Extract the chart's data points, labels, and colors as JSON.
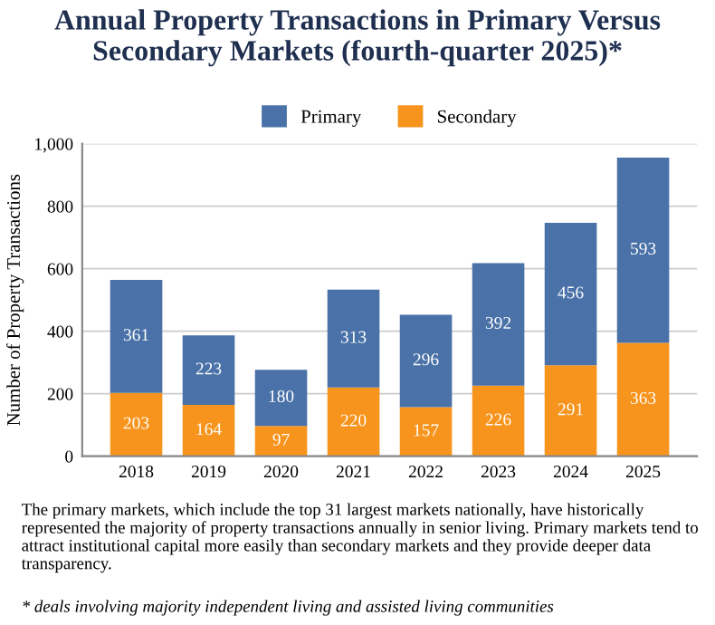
{
  "chart_data": {
    "type": "bar",
    "stacked": true,
    "title": "Annual Property Transactions in Primary Versus Secondary Markets (fourth-quarter 2025)*",
    "ylabel": "Number of Property Transactions",
    "categories": [
      "2018",
      "2019",
      "2020",
      "2021",
      "2022",
      "2023",
      "2024",
      "2025"
    ],
    "series": [
      {
        "name": "Secondary",
        "color": "#f7941d",
        "values": [
          203,
          164,
          97,
          220,
          157,
          226,
          291,
          363
        ]
      },
      {
        "name": "Primary",
        "color": "#4a72a8",
        "values": [
          361,
          223,
          180,
          313,
          296,
          392,
          456,
          593
        ]
      }
    ],
    "ylim": [
      0,
      1000
    ],
    "yticks": [
      0,
      200,
      400,
      600,
      800,
      {
        "value": 1000,
        "label": "1,000"
      }
    ],
    "grid": "y",
    "legend": "top",
    "data_labels": true,
    "annotations": [
      "The primary markets, which include the top 31 largest markets nationally, have historically represented the majority of property transactions annually in senior living. Primary markets tend to attract institutional capital more easily than secondary markets and they provide deeper data transparency.",
      "* deals involving majority independent living and assisted living communities"
    ]
  }
}
